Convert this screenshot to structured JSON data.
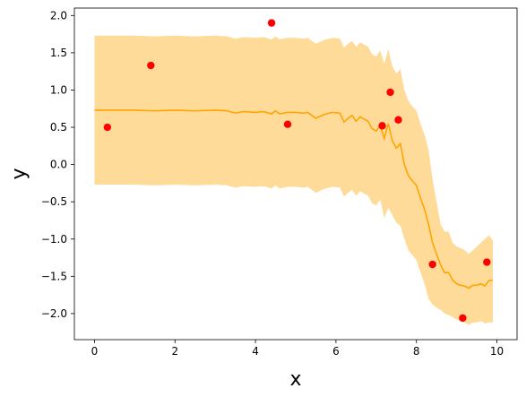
{
  "chart_data": {
    "type": "line",
    "title": "",
    "xlabel": "x",
    "ylabel": "y",
    "xlim": [
      -0.5,
      10.5
    ],
    "ylim": [
      -2.35,
      2.1
    ],
    "xticks": [
      0,
      2,
      4,
      6,
      8,
      10
    ],
    "xtick_labels": [
      "0",
      "2",
      "4",
      "6",
      "8",
      "10"
    ],
    "yticks": [
      -2.0,
      -1.5,
      -1.0,
      -0.5,
      0.0,
      0.5,
      1.0,
      1.5,
      2.0
    ],
    "ytick_labels": [
      "−2.0",
      "−1.5",
      "−1.0",
      "−0.5",
      "0.0",
      "0.5",
      "1.0",
      "1.5",
      "2.0"
    ],
    "grid": false,
    "legend": false,
    "colors": {
      "mean": "#ffa500",
      "band": "#ffa500",
      "points": "#ff0000"
    },
    "mean_curve": {
      "x": [
        0.0,
        0.5,
        1.0,
        1.5,
        2.0,
        2.5,
        3.0,
        3.3,
        3.5,
        3.7,
        4.0,
        4.2,
        4.4,
        4.5,
        4.6,
        4.8,
        5.0,
        5.2,
        5.3,
        5.5,
        5.7,
        5.9,
        6.1,
        6.2,
        6.3,
        6.4,
        6.5,
        6.6,
        6.7,
        6.8,
        6.9,
        7.0,
        7.1,
        7.2,
        7.3,
        7.4,
        7.5,
        7.6,
        7.7,
        7.8,
        7.9,
        8.0,
        8.1,
        8.2,
        8.3,
        8.4,
        8.5,
        8.6,
        8.7,
        8.8,
        8.9,
        9.0,
        9.1,
        9.2,
        9.3,
        9.4,
        9.5,
        9.6,
        9.7,
        9.8,
        9.9
      ],
      "y": [
        0.73,
        0.73,
        0.73,
        0.72,
        0.73,
        0.72,
        0.73,
        0.72,
        0.69,
        0.71,
        0.7,
        0.71,
        0.68,
        0.72,
        0.68,
        0.7,
        0.7,
        0.69,
        0.7,
        0.62,
        0.67,
        0.7,
        0.69,
        0.57,
        0.62,
        0.66,
        0.58,
        0.64,
        0.61,
        0.58,
        0.48,
        0.45,
        0.53,
        0.35,
        0.55,
        0.32,
        0.22,
        0.28,
        0.0,
        -0.15,
        -0.22,
        -0.28,
        -0.45,
        -0.6,
        -0.8,
        -1.05,
        -1.2,
        -1.35,
        -1.45,
        -1.45,
        -1.55,
        -1.6,
        -1.62,
        -1.63,
        -1.66,
        -1.62,
        -1.62,
        -1.6,
        -1.63,
        -1.56,
        -1.55
      ],
      "lower": [
        -0.27,
        -0.27,
        -0.27,
        -0.28,
        -0.27,
        -0.28,
        -0.27,
        -0.28,
        -0.31,
        -0.29,
        -0.3,
        -0.29,
        -0.32,
        -0.28,
        -0.32,
        -0.3,
        -0.3,
        -0.31,
        -0.3,
        -0.38,
        -0.33,
        -0.3,
        -0.31,
        -0.43,
        -0.38,
        -0.34,
        -0.42,
        -0.36,
        -0.39,
        -0.42,
        -0.52,
        -0.55,
        -0.47,
        -0.72,
        -0.58,
        -0.68,
        -0.78,
        -0.82,
        -1.0,
        -1.15,
        -1.22,
        -1.28,
        -1.45,
        -1.6,
        -1.8,
        -1.88,
        -1.92,
        -1.95,
        -2.0,
        -2.02,
        -2.05,
        -2.08,
        -2.1,
        -2.12,
        -2.15,
        -2.12,
        -2.12,
        -2.1,
        -2.13,
        -2.12,
        -2.12
      ],
      "upper": [
        1.73,
        1.73,
        1.73,
        1.72,
        1.73,
        1.72,
        1.73,
        1.72,
        1.69,
        1.71,
        1.7,
        1.71,
        1.68,
        1.72,
        1.68,
        1.7,
        1.7,
        1.69,
        1.7,
        1.62,
        1.67,
        1.7,
        1.69,
        1.57,
        1.62,
        1.66,
        1.58,
        1.64,
        1.61,
        1.58,
        1.48,
        1.45,
        1.53,
        1.35,
        1.55,
        1.32,
        1.22,
        1.28,
        1.0,
        0.85,
        0.78,
        0.72,
        0.55,
        0.4,
        0.2,
        -0.2,
        -0.5,
        -0.8,
        -0.9,
        -0.9,
        -1.05,
        -1.1,
        -1.12,
        -1.15,
        -1.2,
        -1.15,
        -1.1,
        -1.05,
        -1.0,
        -0.95,
        -1.02
      ]
    },
    "points": {
      "x": [
        0.32,
        1.4,
        4.4,
        4.8,
        7.15,
        7.35,
        7.55,
        8.4,
        9.15,
        9.75
      ],
      "y": [
        0.5,
        1.33,
        1.9,
        0.54,
        0.52,
        0.97,
        0.6,
        -1.34,
        -2.06,
        -1.31
      ]
    }
  }
}
